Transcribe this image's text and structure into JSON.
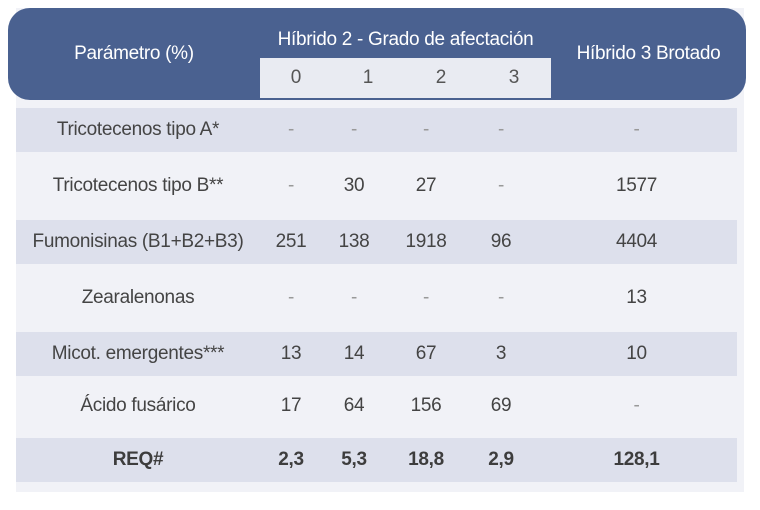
{
  "header": {
    "param_label": "Parámetro (%)",
    "hybrid2_label": "Híbrido 2 - Grado de afectación",
    "hybrid3_label": "Híbrido 3 Brotado",
    "grades": [
      "0",
      "1",
      "2",
      "3"
    ]
  },
  "rows": [
    {
      "name": "Tricotecenos tipo A*",
      "values": [
        "-",
        "-",
        "-",
        "-"
      ],
      "h3": "-"
    },
    {
      "name": "Tricotecenos tipo B**",
      "values": [
        "-",
        "30",
        "27",
        "-"
      ],
      "h3": "1577"
    },
    {
      "name": "Fumonisinas (B1+B2+B3)",
      "values": [
        "251",
        "138",
        "1918",
        "96"
      ],
      "h3": "4404"
    },
    {
      "name": "Zearalenonas",
      "values": [
        "-",
        "-",
        "-",
        "-"
      ],
      "h3": "13"
    },
    {
      "name": "Micot. emergentes***",
      "values": [
        "13",
        "14",
        "67",
        "3"
      ],
      "h3": "10"
    },
    {
      "name": "Ácido fusárico",
      "values": [
        "17",
        "64",
        "156",
        "69"
      ],
      "h3": "-"
    },
    {
      "name": "REQ#",
      "values": [
        "2,3",
        "5,3",
        "18,8",
        "2,9"
      ],
      "h3": "128,1"
    }
  ]
}
